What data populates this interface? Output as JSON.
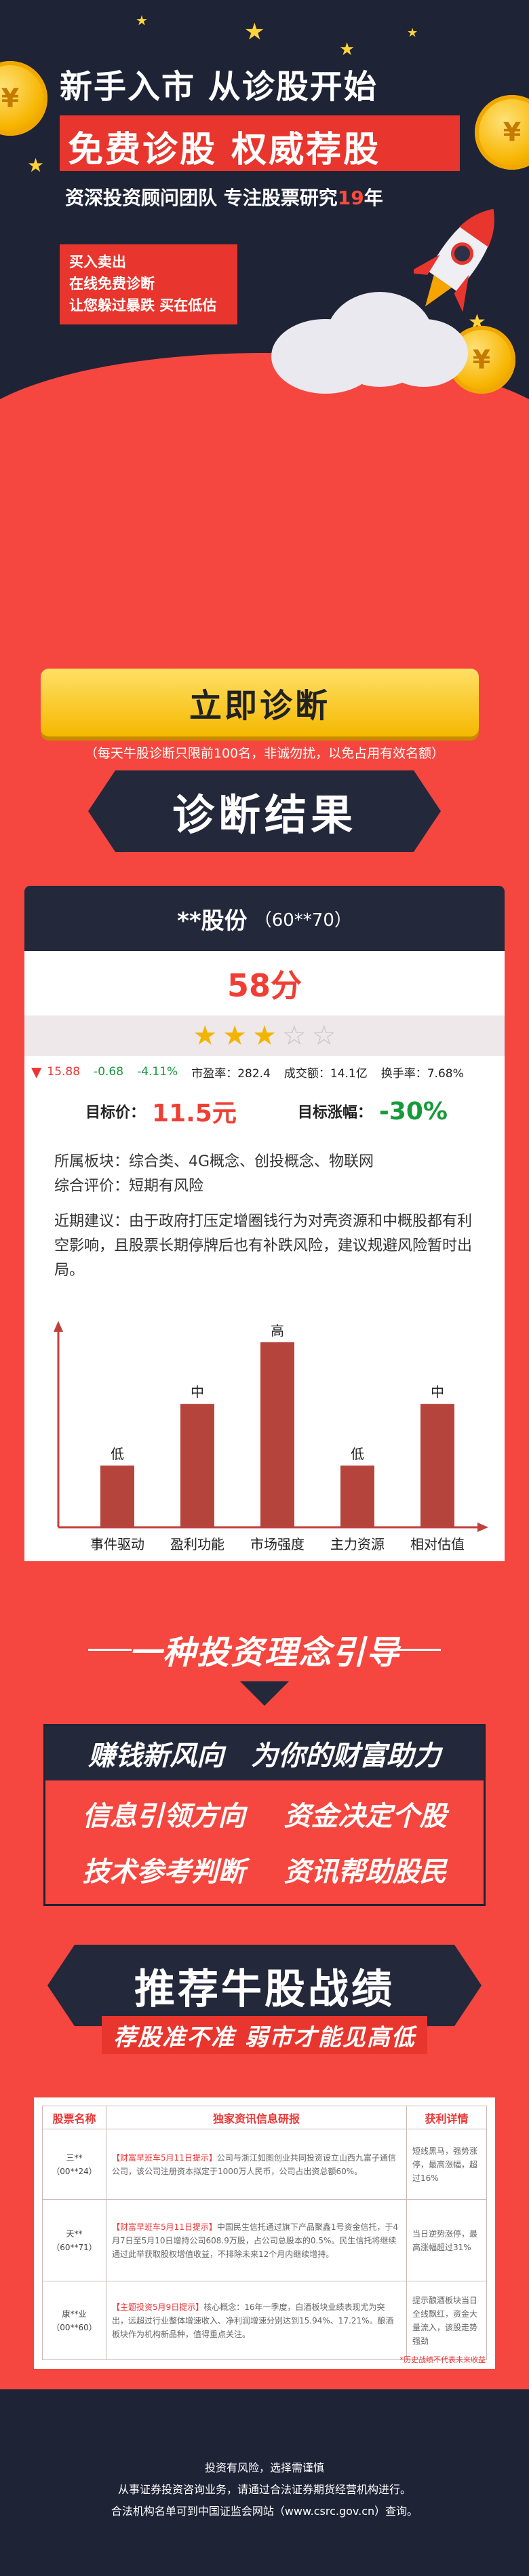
{
  "hero": {
    "headline": "新手入市  从诊股开始",
    "banner": "免费诊股  权威荐股",
    "sub_prefix": "资深投资顾问团队  专注股票研究",
    "sub_years": "19",
    "sub_suffix": "年",
    "ad_lines": [
      "买入卖出",
      "在线免费诊断",
      "让您躲过暴跌 买在低估"
    ]
  },
  "diagnose": {
    "button_label": "立即诊断",
    "note": "（每天牛股诊断只限前100名，非诚勿扰，以免占用有效名额）",
    "result_title": "诊断结果"
  },
  "stock_card": {
    "name": "**股份",
    "code": "（60**70）",
    "score": "58分",
    "rating_filled": 3,
    "rating_total": 5,
    "quote": {
      "price": "15.88",
      "change": "-0.68",
      "change_pct": "-4.11%",
      "pe": "市盈率：282.4",
      "volume": "成交额：14.1亿",
      "turnover": "换手率：7.68%"
    },
    "target_price_label": "目标价：",
    "target_price": "11.5元",
    "target_gain_label": "目标涨幅：",
    "target_gain": "-30%",
    "sector": "所属板块：综合类、4G概念、创投概念、物联网",
    "rating_text": "综合评价：短期有风险",
    "advice": "近期建议：由于政府打压定增圈钱行为对壳资源和中概股都有利空影响，且股票长期停牌后也有补跌风险，建议规避风险暂时出局。"
  },
  "chart_data": {
    "type": "bar",
    "categories": [
      "事件驱动",
      "盈利功能",
      "市场强度",
      "主力资源",
      "相对估值"
    ],
    "values": [
      1,
      2,
      3,
      1,
      2
    ],
    "value_labels": [
      "低",
      "中",
      "高",
      "低",
      "中"
    ],
    "ylim": [
      0,
      3.3
    ],
    "colors": {
      "bar": "#b5453c",
      "axis": "#c0413a"
    }
  },
  "guide": {
    "title": "一种投资理念引导",
    "head_left": "赚钱新风向",
    "head_right": "为你的财富助力",
    "items": [
      "信息引领方向",
      "资金决定个股",
      "技术参考判断",
      "资讯帮助股民"
    ]
  },
  "recommend": {
    "title": "推荐牛股战绩",
    "subtitle": "荐股准不准 弱市才能见高低",
    "headers": [
      "股票名称",
      "独家资讯信息研报",
      "获利详情"
    ],
    "rows": [
      {
        "name": "三**（00**24）",
        "tag": "【财富早班车5月11日提示】",
        "news": "公司与浙江如图创业共同投资设立山西九富子通信公司，该公司注册资本拟定于1000万人民币，公司占出资总额60%。",
        "detail": "短线黑马，强势涨停，最高涨幅，超过16%"
      },
      {
        "name": "天**（60**71）",
        "tag": "【财富早班车5月11日提示】",
        "news": "中国民生信托通过旗下产品聚鑫1号资金信托，于4月7日至5月10日增持公司608.9万股，占公司总股本的0.5%。民生信托将继续通过此举获取股权增值收益，不排除未来12个月内继续增持。",
        "detail": "当日逆势涨停，最高涨幅超过31%"
      },
      {
        "name": "康**业（00**60）",
        "tag": "【主题投资5月9日提示】",
        "news": "核心概念：16年一季度，白酒板块业绩表现尤为突出，远超过行业整体增速收入、净利润增速分别达到15.94%、17.21%。酿酒板块作为机构新品种，值得重点关注。",
        "detail": "提示酿酒板块当日全线飘红，资金大量流入，该股走势强劲"
      }
    ],
    "footnote": "*历史战绩不代表未来收益"
  },
  "footer": {
    "lines": [
      "投资有风险，选择需谨慎",
      "从事证券投资咨询业务，请通过合法证券期货经营机构进行。",
      "合法机构名单可到中国证监会网站（www.csrc.gov.cn）查询。"
    ]
  }
}
